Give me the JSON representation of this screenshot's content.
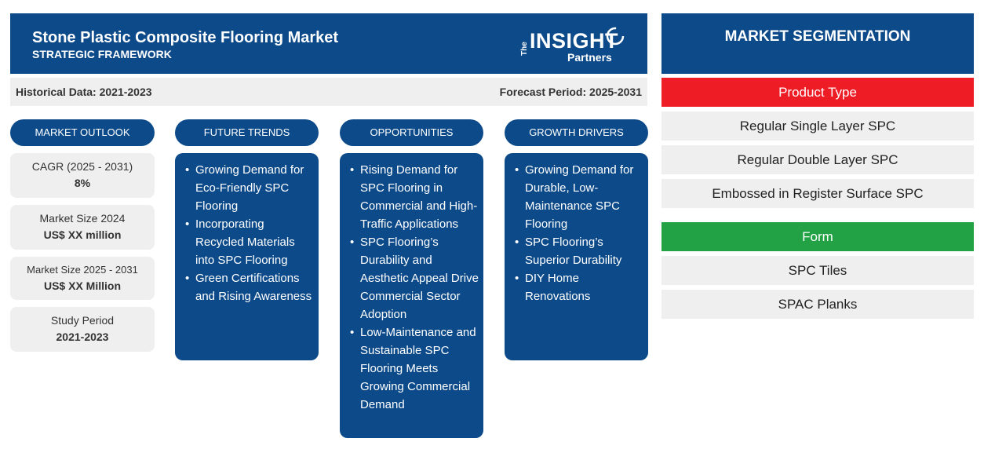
{
  "header": {
    "title": "Stone Plastic Composite Flooring Market",
    "subtitle": "STRATEGIC FRAMEWORK",
    "logo": {
      "the": "The",
      "insight": "INSIGHT",
      "partners": "Partners"
    }
  },
  "period": {
    "historical": "Historical Data: 2021-2023",
    "forecast": "Forecast Period: 2025-2031"
  },
  "columns": {
    "outlook": "MARKET OUTLOOK",
    "trends": "FUTURE TRENDS",
    "opportunities": "OPPORTUNITIES",
    "drivers": "GROWTH DRIVERS"
  },
  "outlook": [
    {
      "label": "CAGR (2025 - 2031)",
      "value": "8%"
    },
    {
      "label": "Market Size 2024",
      "value": "US$ XX million"
    },
    {
      "label": "Market Size 2025 - 2031",
      "value": "US$ XX Million"
    },
    {
      "label": "Study Period",
      "value": "2021-2023"
    }
  ],
  "trends": [
    "Growing Demand for Eco-Friendly SPC Flooring",
    "Incorporating Recycled Materials into SPC Flooring",
    "Green Certifications and Rising Awareness"
  ],
  "opportunities": [
    "Rising Demand for SPC Flooring in Commercial and High-Traffic Applications",
    "SPC Flooring’s Durability and Aesthetic Appeal Drive Commercial Sector Adoption",
    "Low-Maintenance and Sustainable SPC Flooring Meets Growing Commercial Demand"
  ],
  "drivers": [
    "Growing Demand for Durable, Low-Maintenance SPC Flooring",
    "SPC Flooring’s Superior Durability",
    "DIY Home Renovations"
  ],
  "segmentation": {
    "title": "MARKET SEGMENTATION",
    "product_type": {
      "label": "Product Type",
      "items": [
        "Regular Single Layer SPC",
        "Regular Double Layer SPC",
        "Embossed in Register Surface SPC"
      ]
    },
    "form": {
      "label": "Form",
      "items": [
        "SPC Tiles",
        "SPAC Planks"
      ]
    }
  },
  "colors": {
    "primary_blue": "#0c4a8a",
    "product_type_red": "#ee1c25",
    "form_green": "#22a245",
    "light_gray": "#efefef"
  }
}
